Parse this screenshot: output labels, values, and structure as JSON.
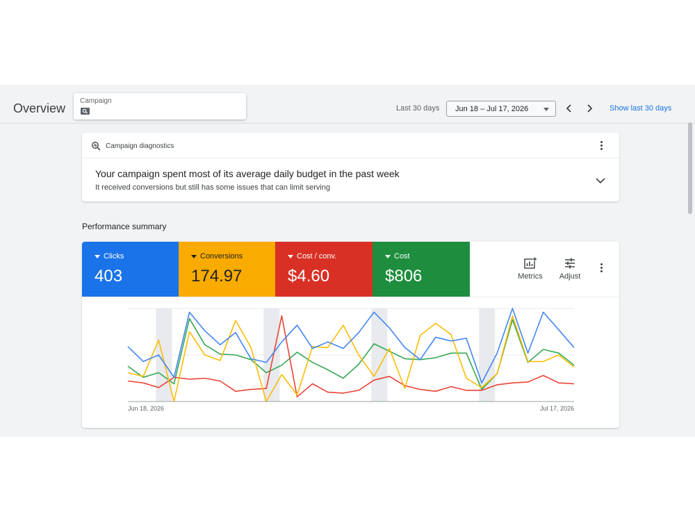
{
  "header": {
    "title": "Overview",
    "campaign_label": "Campaign",
    "range_label": "Last 30 days",
    "date_range": "Jun 18 – Jul 17, 2026",
    "show_last_label": "Show last 30 days"
  },
  "diagnostics": {
    "title": "Campaign diagnostics",
    "headline": "Your campaign spent most of its average daily budget in the past week",
    "subtext": "It received conversions but still has some issues that can limit serving"
  },
  "performance": {
    "title": "Performance summary",
    "metrics": [
      {
        "label": "Clicks",
        "value": "403",
        "color": "#1a73e8"
      },
      {
        "label": "Conversions",
        "value": "174.97",
        "color": "#f9ab00"
      },
      {
        "label": "Cost / conv.",
        "value": "$4.60",
        "color": "#d93025"
      },
      {
        "label": "Cost",
        "value": "$806",
        "color": "#1e8e3e"
      }
    ],
    "metrics_button": "Metrics",
    "adjust_button": "Adjust"
  },
  "chart_data": {
    "type": "line",
    "x_start_label": "Jun 18, 2026",
    "x_end_label": "Jul 17, 2026",
    "grid": true,
    "weekend_bands_day_index": [
      [
        2,
        3
      ],
      [
        9,
        10
      ],
      [
        16,
        17
      ],
      [
        23,
        24
      ]
    ],
    "series": [
      {
        "name": "Clicks",
        "color": "#4285f4",
        "values": [
          0.59,
          0.43,
          0.5,
          0.26,
          0.96,
          0.76,
          0.61,
          0.74,
          0.46,
          0.42,
          0.64,
          0.82,
          0.57,
          0.64,
          0.57,
          0.74,
          0.96,
          0.79,
          0.58,
          0.45,
          0.69,
          0.65,
          0.68,
          0.2,
          0.52,
          1.0,
          0.52,
          0.96,
          0.77,
          0.58
        ]
      },
      {
        "name": "Conversions",
        "color": "#fbbc04",
        "values": [
          0.31,
          0.27,
          0.66,
          0.0,
          0.75,
          0.5,
          0.44,
          0.87,
          0.58,
          0.0,
          0.29,
          0.07,
          0.59,
          0.58,
          0.82,
          0.5,
          0.27,
          0.57,
          0.14,
          0.71,
          0.84,
          0.72,
          0.25,
          0.15,
          0.3,
          0.92,
          0.43,
          0.43,
          0.5,
          0.37
        ]
      },
      {
        "name": "Cost / conv.",
        "color": "#ea4335",
        "values": [
          0.22,
          0.2,
          0.15,
          0.26,
          0.24,
          0.25,
          0.22,
          0.11,
          0.13,
          0.14,
          0.92,
          0.05,
          0.19,
          0.1,
          0.09,
          0.12,
          0.23,
          0.27,
          0.17,
          0.13,
          0.11,
          0.16,
          0.12,
          0.12,
          0.18,
          0.2,
          0.21,
          0.28,
          0.2,
          0.19
        ]
      },
      {
        "name": "Cost",
        "color": "#34a853",
        "values": [
          0.38,
          0.26,
          0.31,
          0.19,
          0.89,
          0.61,
          0.51,
          0.5,
          0.45,
          0.31,
          0.39,
          0.53,
          0.42,
          0.34,
          0.25,
          0.4,
          0.62,
          0.54,
          0.46,
          0.45,
          0.47,
          0.52,
          0.52,
          0.13,
          0.3,
          0.88,
          0.42,
          0.56,
          0.52,
          0.39
        ]
      }
    ]
  }
}
